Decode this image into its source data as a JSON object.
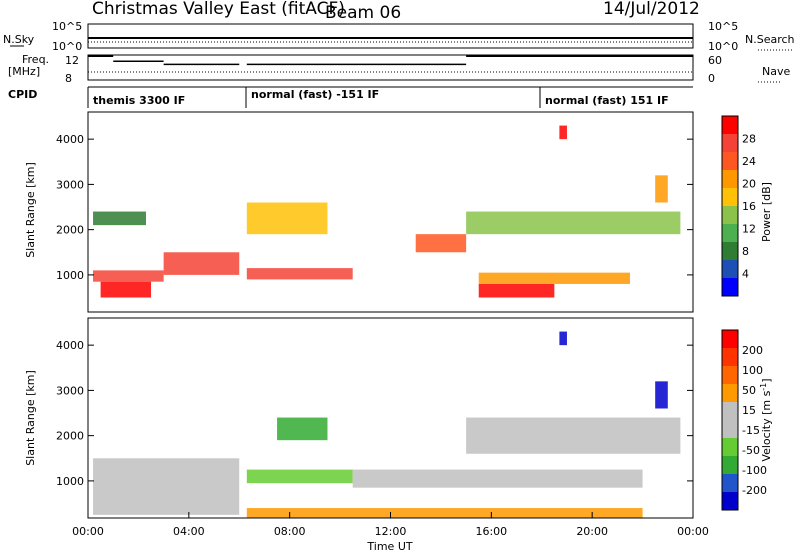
{
  "header": {
    "title": "Christmas Valley East (fitACF)",
    "beam": "Beam 06",
    "date": "14/Jul/2012"
  },
  "noise_panel": {
    "left_label": "N.Sky",
    "right_label": "N.Search",
    "left_ticks": [
      "10^5",
      "10^0"
    ],
    "right_ticks": [
      "10^5",
      "10^0"
    ]
  },
  "freq_panel": {
    "left_label_1": "Freq.",
    "left_label_2": "[MHz]",
    "right_label": "Nave",
    "left_ticks": [
      "12",
      "8"
    ],
    "right_ticks": [
      "60",
      "0"
    ]
  },
  "cpid": {
    "label": "CPID",
    "segments": [
      "themis 3300 IF",
      "normal (fast) -151 IF",
      "normal (fast) 151 IF"
    ]
  },
  "power_panel": {
    "ylabel": "Slant Range [km]",
    "yticks": [
      "4000",
      "3000",
      "2000",
      "1000"
    ],
    "colorbar_label": "Power [dB]",
    "colorbar_ticks": [
      "28",
      "24",
      "20",
      "16",
      "12",
      "8",
      "4"
    ],
    "colors": [
      "#0000ff",
      "#1e4fb4",
      "#2e7d32",
      "#4caf50",
      "#8bc34a",
      "#ffc107",
      "#ff9800",
      "#ff5722",
      "#f44336",
      "#ff0000"
    ]
  },
  "velocity_panel": {
    "ylabel": "Slant Range [km]",
    "yticks": [
      "4000",
      "3000",
      "2000",
      "1000"
    ],
    "colorbar_label": "Velocity [m s",
    "colorbar_label_sup": "-1",
    "colorbar_label_end": "]",
    "colorbar_ticks": [
      "200",
      "100",
      "50",
      "15",
      "-15",
      "-50",
      "-100",
      "-200"
    ],
    "colors": [
      "#0000cc",
      "#2255cc",
      "#33aa33",
      "#66cc33",
      "#c0c0c0",
      "#c0c0c0",
      "#ff9900",
      "#ff6600",
      "#ff3300",
      "#ff0000"
    ]
  },
  "xaxis": {
    "label": "Time UT",
    "ticks": [
      "00:00",
      "04:00",
      "08:00",
      "12:00",
      "16:00",
      "20:00",
      "00:00"
    ]
  },
  "chart_data": {
    "type": "heatmap",
    "x_range_hours": [
      0,
      24
    ],
    "y_range_km": [
      180,
      4600
    ],
    "power_bands": [
      {
        "t0": 0.2,
        "t1": 3.0,
        "r0": 850,
        "r1": 1100,
        "level": 8
      },
      {
        "t0": 0.5,
        "t1": 2.5,
        "r0": 500,
        "r1": 850,
        "level": 9
      },
      {
        "t0": 3.0,
        "t1": 6.0,
        "r0": 1000,
        "r1": 1500,
        "level": 8
      },
      {
        "t0": 6.3,
        "t1": 10.5,
        "r0": 900,
        "r1": 1150,
        "level": 8
      },
      {
        "t0": 6.3,
        "t1": 9.5,
        "r0": 1900,
        "r1": 2600,
        "level": 5
      },
      {
        "t0": 13.0,
        "t1": 15.0,
        "r0": 1500,
        "r1": 1900,
        "level": 7
      },
      {
        "t0": 15.5,
        "t1": 18.5,
        "r0": 500,
        "r1": 800,
        "level": 9
      },
      {
        "t0": 15.5,
        "t1": 21.5,
        "r0": 800,
        "r1": 1050,
        "level": 6
      },
      {
        "t0": 0.2,
        "t1": 2.3,
        "r0": 2100,
        "r1": 2400,
        "level": 2
      },
      {
        "t0": 15.0,
        "t1": 23.5,
        "r0": 1900,
        "r1": 2400,
        "level": 4
      },
      {
        "t0": 22.5,
        "t1": 23.0,
        "r0": 2600,
        "r1": 3200,
        "level": 6
      },
      {
        "t0": 18.7,
        "t1": 19.0,
        "r0": 4000,
        "r1": 4300,
        "level": 9
      }
    ],
    "velocity_bands": [
      {
        "t0": 0.2,
        "t1": 6.0,
        "r0": 250,
        "r1": 1500,
        "level": 4
      },
      {
        "t0": 6.3,
        "t1": 10.5,
        "r0": 950,
        "r1": 1250,
        "level": 3
      },
      {
        "t0": 7.5,
        "t1": 9.5,
        "r0": 1900,
        "r1": 2400,
        "level": 2
      },
      {
        "t0": 6.3,
        "t1": 22.0,
        "r0": 180,
        "r1": 400,
        "level": 6
      },
      {
        "t0": 10.5,
        "t1": 22.0,
        "r0": 850,
        "r1": 1250,
        "level": 4
      },
      {
        "t0": 15.0,
        "t1": 23.5,
        "r0": 1600,
        "r1": 2400,
        "level": 4
      },
      {
        "t0": 22.5,
        "t1": 23.0,
        "r0": 2600,
        "r1": 3200,
        "level": 0
      },
      {
        "t0": 18.7,
        "t1": 19.0,
        "r0": 4000,
        "r1": 4300,
        "level": 0
      }
    ],
    "freq_segments": [
      {
        "t0": 0,
        "t1": 1.0,
        "freq": 11.8
      },
      {
        "t0": 1.0,
        "t1": 3.0,
        "freq": 11.0
      },
      {
        "t0": 3.0,
        "t1": 6.0,
        "freq": 10.5
      },
      {
        "t0": 6.3,
        "t1": 15.0,
        "freq": 10.5
      },
      {
        "t0": 15.0,
        "t1": 24.0,
        "freq": 11.8
      }
    ]
  }
}
